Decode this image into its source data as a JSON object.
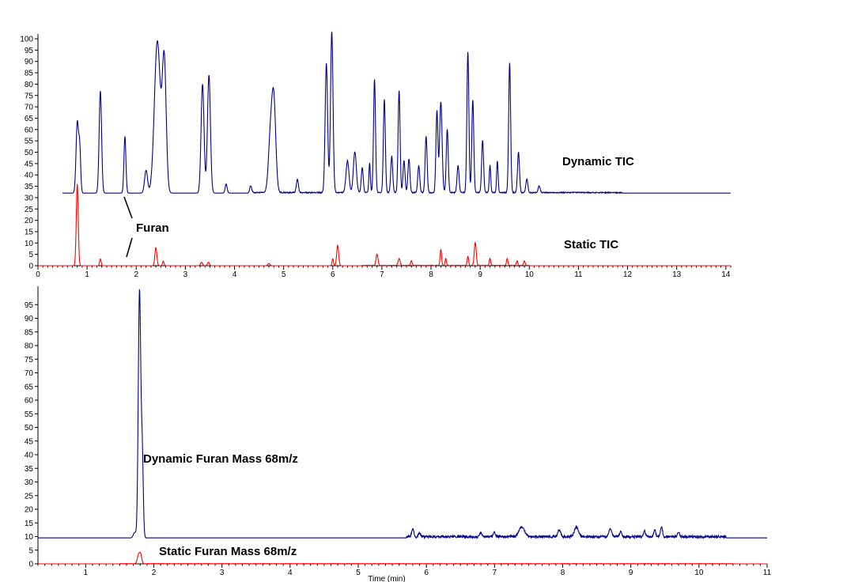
{
  "chart_data": [
    {
      "type": "line",
      "title": "",
      "xlabel": "",
      "ylabel": "",
      "xlim": [
        0,
        14.1
      ],
      "ylim": [
        0,
        100
      ],
      "x_ticks": [
        0,
        1,
        2,
        3,
        4,
        5,
        6,
        7,
        8,
        9,
        10,
        11,
        12,
        13,
        14
      ],
      "y_ticks": [
        0,
        5,
        10,
        15,
        20,
        25,
        30,
        35,
        40,
        45,
        50,
        55,
        60,
        65,
        70,
        75,
        80,
        85,
        90,
        95,
        100
      ],
      "annotations": [
        {
          "text": "Dynamic TIC",
          "x": 10.8,
          "y": 44
        },
        {
          "text": "Static TIC",
          "x": 10.8,
          "y": 8
        },
        {
          "text": "Furan",
          "x": 1.85,
          "y": 16
        }
      ],
      "series": [
        {
          "name": "Dynamic TIC",
          "color": "#00008b",
          "baseline": 32,
          "noise": [
            [
              4.3,
              11.9
            ],
            [
              0.2,
              0.1
            ]
          ],
          "peaks": [
            [
              0.8,
              63,
              0.025
            ],
            [
              0.85,
              51,
              0.02
            ],
            [
              1.27,
              77,
              0.025
            ],
            [
              1.77,
              57,
              0.02
            ],
            [
              2.2,
              42,
              0.03
            ],
            [
              2.43,
              99,
              0.06
            ],
            [
              2.57,
              90,
              0.04
            ],
            [
              3.35,
              80,
              0.03
            ],
            [
              3.48,
              84,
              0.03
            ],
            [
              3.83,
              36,
              0.02
            ],
            [
              4.33,
              35,
              0.02
            ],
            [
              4.73,
              55,
              0.04
            ],
            [
              4.8,
              72,
              0.04
            ],
            [
              5.28,
              38,
              0.02
            ],
            [
              5.87,
              89,
              0.025
            ],
            [
              5.98,
              103,
              0.025
            ],
            [
              6.3,
              46,
              0.03
            ],
            [
              6.45,
              50,
              0.03
            ],
            [
              6.6,
              43,
              0.02
            ],
            [
              6.85,
              82,
              0.02
            ],
            [
              7.05,
              73,
              0.02
            ],
            [
              7.35,
              77,
              0.02
            ],
            [
              7.9,
              57,
              0.02
            ],
            [
              8.12,
              68,
              0.02
            ],
            [
              8.2,
              72,
              0.025
            ],
            [
              8.33,
              60,
              0.02
            ],
            [
              8.75,
              94,
              0.02
            ],
            [
              8.85,
              73,
              0.02
            ],
            [
              9.05,
              55,
              0.02
            ],
            [
              9.6,
              89,
              0.02
            ],
            [
              9.78,
              50,
              0.02
            ],
            [
              9.35,
              46,
              0.015
            ],
            [
              9.2,
              44,
              0.015
            ],
            [
              7.55,
              47,
              0.02
            ],
            [
              7.75,
              44,
              0.02
            ],
            [
              6.75,
              45,
              0.015
            ],
            [
              7.2,
              48,
              0.02
            ],
            [
              7.45,
              46,
              0.02
            ],
            [
              8.55,
              44,
              0.02
            ],
            [
              9.95,
              38,
              0.02
            ],
            [
              10.2,
              35,
              0.02
            ]
          ]
        },
        {
          "name": "Static TIC",
          "color": "#ff0000",
          "baseline": 0,
          "noise": [
            [
              6.6,
              10.0
            ],
            [
              0.1,
              0.05
            ]
          ],
          "peaks": [
            [
              0.8,
              36,
              0.02
            ],
            [
              1.27,
              3,
              0.015
            ],
            [
              2.4,
              8,
              0.02
            ],
            [
              2.55,
              2,
              0.015
            ],
            [
              3.33,
              1.5,
              0.02
            ],
            [
              3.47,
              1.5,
              0.02
            ],
            [
              4.7,
              1,
              0.02
            ],
            [
              6.1,
              9,
              0.02
            ],
            [
              6.0,
              3,
              0.015
            ],
            [
              6.9,
              5,
              0.02
            ],
            [
              7.35,
              3,
              0.02
            ],
            [
              7.6,
              2,
              0.015
            ],
            [
              8.2,
              7,
              0.015
            ],
            [
              8.3,
              3,
              0.015
            ],
            [
              8.75,
              4,
              0.015
            ],
            [
              8.9,
              10,
              0.02
            ],
            [
              9.2,
              3,
              0.015
            ],
            [
              9.55,
              3,
              0.015
            ],
            [
              9.75,
              2,
              0.015
            ],
            [
              9.9,
              2,
              0.015
            ]
          ]
        }
      ]
    },
    {
      "type": "line",
      "title": "",
      "xlabel": "Time (min)",
      "ylabel": "",
      "xlim": [
        0.3,
        11.0
      ],
      "ylim": [
        0,
        100
      ],
      "x_ticks": [
        1,
        2,
        3,
        4,
        5,
        6,
        7,
        8,
        9,
        10,
        11
      ],
      "y_ticks": [
        0,
        5,
        10,
        15,
        20,
        25,
        30,
        35,
        40,
        45,
        50,
        55,
        60,
        65,
        70,
        75,
        80,
        85,
        90,
        95
      ],
      "annotations": [
        {
          "text": "Dynamic Furan Mass 68m/z",
          "x": 2.3,
          "y": 39
        },
        {
          "text": "Static Furan Mass 68m/z",
          "x": 2.5,
          "y": 3.5
        }
      ],
      "series": [
        {
          "name": "Dynamic Furan Mass 68m/z",
          "color": "#00008b",
          "baseline": 9.5,
          "noise": [
            [
              5.7,
              10.4
            ],
            [
              0.4,
              0.2
            ]
          ],
          "peaks": [
            [
              1.72,
              11.5,
              0.02
            ],
            [
              1.79,
              100,
              0.018
            ],
            [
              1.83,
              40,
              0.015
            ],
            [
              5.8,
              12.5,
              0.015
            ],
            [
              5.9,
              11,
              0.015
            ],
            [
              6.8,
              11,
              0.015
            ],
            [
              7.0,
              11,
              0.015
            ],
            [
              7.4,
              13,
              0.04
            ],
            [
              7.95,
              12,
              0.02
            ],
            [
              8.2,
              13,
              0.03
            ],
            [
              8.7,
              12.5,
              0.02
            ],
            [
              8.85,
              11.5,
              0.015
            ],
            [
              9.2,
              11.5,
              0.015
            ],
            [
              9.35,
              12,
              0.015
            ],
            [
              9.45,
              13,
              0.015
            ],
            [
              9.7,
              11,
              0.015
            ]
          ]
        },
        {
          "name": "Static Furan Mass 68m/z",
          "color": "#ff0000",
          "baseline": 0,
          "noise": [
            [
              1.5,
              10.5
            ],
            [
              0.05,
              0.03
            ]
          ],
          "peaks": [
            [
              1.78,
              3.5,
              0.02
            ],
            [
              1.81,
              2.5,
              0.015
            ]
          ]
        }
      ]
    }
  ]
}
